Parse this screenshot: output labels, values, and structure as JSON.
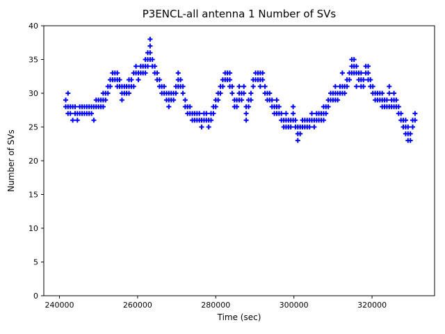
{
  "chart_data": {
    "type": "scatter",
    "title": "P3ENCL-all antenna 1 Number of SVs",
    "xlabel": "Time (sec)",
    "ylabel": "Number of SVs",
    "xlim": [
      236000,
      336000
    ],
    "ylim": [
      0,
      40
    ],
    "xticks": [
      240000,
      260000,
      280000,
      300000,
      320000
    ],
    "yticks": [
      0,
      5,
      10,
      15,
      20,
      25,
      30,
      35,
      40
    ],
    "marker": "plus",
    "marker_color": "#0000ff",
    "grid": false,
    "legend": "none",
    "columns": [
      {
        "x": 241600,
        "ys": [
          29,
          28
        ]
      },
      {
        "x": 242200,
        "ys": [
          30,
          28,
          27
        ]
      },
      {
        "x": 242800,
        "ys": [
          28,
          27
        ]
      },
      {
        "x": 243400,
        "ys": [
          28,
          26
        ]
      },
      {
        "x": 244000,
        "ys": [
          28,
          27
        ]
      },
      {
        "x": 244600,
        "ys": [
          27,
          26
        ]
      },
      {
        "x": 245200,
        "ys": [
          28,
          27
        ]
      },
      {
        "x": 245800,
        "ys": [
          28,
          27
        ]
      },
      {
        "x": 246400,
        "ys": [
          28,
          27
        ]
      },
      {
        "x": 247000,
        "ys": [
          28,
          27
        ]
      },
      {
        "x": 247600,
        "ys": [
          28,
          27
        ]
      },
      {
        "x": 248200,
        "ys": [
          28,
          27
        ]
      },
      {
        "x": 248800,
        "ys": [
          28,
          26
        ]
      },
      {
        "x": 249400,
        "ys": [
          29,
          28
        ]
      },
      {
        "x": 250000,
        "ys": [
          29,
          28
        ]
      },
      {
        "x": 250600,
        "ys": [
          29,
          28
        ]
      },
      {
        "x": 251200,
        "ys": [
          30,
          29,
          28
        ]
      },
      {
        "x": 251800,
        "ys": [
          30,
          29
        ]
      },
      {
        "x": 252400,
        "ys": [
          31,
          30
        ]
      },
      {
        "x": 253000,
        "ys": [
          32,
          31
        ]
      },
      {
        "x": 253600,
        "ys": [
          33,
          32
        ]
      },
      {
        "x": 254200,
        "ys": [
          33,
          32
        ]
      },
      {
        "x": 254800,
        "ys": [
          33,
          32,
          31
        ]
      },
      {
        "x": 255400,
        "ys": [
          32,
          31
        ]
      },
      {
        "x": 256000,
        "ys": [
          31,
          30,
          29
        ]
      },
      {
        "x": 256600,
        "ys": [
          31,
          30
        ]
      },
      {
        "x": 257200,
        "ys": [
          31,
          30
        ]
      },
      {
        "x": 257800,
        "ys": [
          32,
          31,
          30
        ]
      },
      {
        "x": 258400,
        "ys": [
          32,
          31
        ]
      },
      {
        "x": 259000,
        "ys": [
          33,
          31
        ]
      },
      {
        "x": 259600,
        "ys": [
          34,
          33
        ]
      },
      {
        "x": 260200,
        "ys": [
          33,
          32
        ]
      },
      {
        "x": 260800,
        "ys": [
          34,
          33
        ]
      },
      {
        "x": 261400,
        "ys": [
          34,
          33
        ]
      },
      {
        "x": 262000,
        "ys": [
          35,
          34,
          33
        ]
      },
      {
        "x": 262600,
        "ys": [
          36,
          35,
          34
        ]
      },
      {
        "x": 263200,
        "ys": [
          38,
          37,
          36,
          35
        ]
      },
      {
        "x": 263800,
        "ys": [
          35,
          34
        ]
      },
      {
        "x": 264400,
        "ys": [
          34,
          33
        ]
      },
      {
        "x": 265000,
        "ys": [
          33,
          32
        ]
      },
      {
        "x": 265600,
        "ys": [
          32,
          31
        ]
      },
      {
        "x": 266200,
        "ys": [
          31,
          30
        ]
      },
      {
        "x": 266800,
        "ys": [
          31,
          30
        ]
      },
      {
        "x": 267400,
        "ys": [
          30,
          29
        ]
      },
      {
        "x": 268000,
        "ys": [
          30,
          29,
          28
        ]
      },
      {
        "x": 268600,
        "ys": [
          30,
          29
        ]
      },
      {
        "x": 269200,
        "ys": [
          30,
          29
        ]
      },
      {
        "x": 269800,
        "ys": [
          31,
          30
        ]
      },
      {
        "x": 270400,
        "ys": [
          33,
          32,
          31
        ]
      },
      {
        "x": 271000,
        "ys": [
          32,
          31
        ]
      },
      {
        "x": 271600,
        "ys": [
          31,
          30
        ]
      },
      {
        "x": 272200,
        "ys": [
          29,
          28
        ]
      },
      {
        "x": 272800,
        "ys": [
          28,
          27
        ]
      },
      {
        "x": 273400,
        "ys": [
          28,
          27
        ]
      },
      {
        "x": 274000,
        "ys": [
          27,
          26
        ]
      },
      {
        "x": 274600,
        "ys": [
          27,
          26
        ]
      },
      {
        "x": 275200,
        "ys": [
          27,
          26
        ]
      },
      {
        "x": 275800,
        "ys": [
          27,
          26
        ]
      },
      {
        "x": 276400,
        "ys": [
          26,
          25
        ]
      },
      {
        "x": 277000,
        "ys": [
          27,
          26
        ]
      },
      {
        "x": 277600,
        "ys": [
          27,
          26
        ]
      },
      {
        "x": 278200,
        "ys": [
          26,
          25
        ]
      },
      {
        "x": 278800,
        "ys": [
          27,
          26
        ]
      },
      {
        "x": 279400,
        "ys": [
          28,
          27
        ]
      },
      {
        "x": 280000,
        "ys": [
          29,
          28
        ]
      },
      {
        "x": 280600,
        "ys": [
          30,
          29
        ]
      },
      {
        "x": 281200,
        "ys": [
          31,
          30
        ]
      },
      {
        "x": 281800,
        "ys": [
          32,
          31
        ]
      },
      {
        "x": 282400,
        "ys": [
          33,
          32
        ]
      },
      {
        "x": 283000,
        "ys": [
          33,
          32
        ]
      },
      {
        "x": 283600,
        "ys": [
          33,
          32,
          31
        ]
      },
      {
        "x": 284200,
        "ys": [
          31,
          30
        ]
      },
      {
        "x": 284800,
        "ys": [
          29,
          28
        ]
      },
      {
        "x": 285400,
        "ys": [
          29,
          28
        ]
      },
      {
        "x": 286000,
        "ys": [
          31,
          30,
          29
        ]
      },
      {
        "x": 286600,
        "ys": [
          30,
          29
        ]
      },
      {
        "x": 287200,
        "ys": [
          31,
          30
        ]
      },
      {
        "x": 287800,
        "ys": [
          28,
          27,
          26
        ]
      },
      {
        "x": 288400,
        "ys": [
          29,
          28
        ]
      },
      {
        "x": 289000,
        "ys": [
          30,
          29
        ]
      },
      {
        "x": 289600,
        "ys": [
          32,
          31
        ]
      },
      {
        "x": 290200,
        "ys": [
          33,
          32
        ]
      },
      {
        "x": 290800,
        "ys": [
          33,
          32
        ]
      },
      {
        "x": 291400,
        "ys": [
          33,
          32,
          31
        ]
      },
      {
        "x": 292000,
        "ys": [
          33,
          32
        ]
      },
      {
        "x": 292600,
        "ys": [
          31,
          30
        ]
      },
      {
        "x": 293200,
        "ys": [
          30,
          29
        ]
      },
      {
        "x": 293800,
        "ys": [
          30,
          29
        ]
      },
      {
        "x": 294400,
        "ys": [
          29,
          28
        ]
      },
      {
        "x": 295000,
        "ys": [
          28,
          27
        ]
      },
      {
        "x": 295600,
        "ys": [
          29,
          28,
          27
        ]
      },
      {
        "x": 296200,
        "ys": [
          28,
          27
        ]
      },
      {
        "x": 296800,
        "ys": [
          27,
          26
        ]
      },
      {
        "x": 297400,
        "ys": [
          26,
          25
        ]
      },
      {
        "x": 298000,
        "ys": [
          27,
          26,
          25
        ]
      },
      {
        "x": 298600,
        "ys": [
          26,
          25
        ]
      },
      {
        "x": 299200,
        "ys": [
          26,
          25
        ]
      },
      {
        "x": 299800,
        "ys": [
          28,
          27,
          26
        ]
      },
      {
        "x": 300400,
        "ys": [
          26,
          25
        ]
      },
      {
        "x": 301000,
        "ys": [
          25,
          24,
          23
        ]
      },
      {
        "x": 301600,
        "ys": [
          25,
          24
        ]
      },
      {
        "x": 302200,
        "ys": [
          26,
          25
        ]
      },
      {
        "x": 302800,
        "ys": [
          26,
          25
        ]
      },
      {
        "x": 303400,
        "ys": [
          26,
          25
        ]
      },
      {
        "x": 304000,
        "ys": [
          26,
          25
        ]
      },
      {
        "x": 304600,
        "ys": [
          27,
          26
        ]
      },
      {
        "x": 305200,
        "ys": [
          26,
          25
        ]
      },
      {
        "x": 305800,
        "ys": [
          27,
          26
        ]
      },
      {
        "x": 306400,
        "ys": [
          27,
          26
        ]
      },
      {
        "x": 307000,
        "ys": [
          27,
          26
        ]
      },
      {
        "x": 307600,
        "ys": [
          28,
          27,
          26
        ]
      },
      {
        "x": 308200,
        "ys": [
          28,
          27
        ]
      },
      {
        "x": 308800,
        "ys": [
          29,
          28
        ]
      },
      {
        "x": 309400,
        "ys": [
          30,
          29
        ]
      },
      {
        "x": 310000,
        "ys": [
          30,
          29
        ]
      },
      {
        "x": 310600,
        "ys": [
          31,
          30,
          29
        ]
      },
      {
        "x": 311200,
        "ys": [
          30,
          29
        ]
      },
      {
        "x": 311800,
        "ys": [
          31,
          30
        ]
      },
      {
        "x": 312400,
        "ys": [
          33,
          31,
          30
        ]
      },
      {
        "x": 313000,
        "ys": [
          31,
          30
        ]
      },
      {
        "x": 313600,
        "ys": [
          32,
          31
        ]
      },
      {
        "x": 314200,
        "ys": [
          33,
          32
        ]
      },
      {
        "x": 314800,
        "ys": [
          35,
          34,
          33
        ]
      },
      {
        "x": 315400,
        "ys": [
          35,
          34,
          33
        ]
      },
      {
        "x": 316000,
        "ys": [
          34,
          33,
          31
        ]
      },
      {
        "x": 316600,
        "ys": [
          33,
          32
        ]
      },
      {
        "x": 317200,
        "ys": [
          33,
          32,
          31
        ]
      },
      {
        "x": 317800,
        "ys": [
          32,
          31
        ]
      },
      {
        "x": 318400,
        "ys": [
          34,
          33
        ]
      },
      {
        "x": 319000,
        "ys": [
          34,
          33,
          32
        ]
      },
      {
        "x": 319600,
        "ys": [
          32,
          31
        ]
      },
      {
        "x": 320200,
        "ys": [
          31,
          30
        ]
      },
      {
        "x": 320800,
        "ys": [
          30,
          29
        ]
      },
      {
        "x": 321400,
        "ys": [
          30,
          29
        ]
      },
      {
        "x": 322000,
        "ys": [
          30,
          29
        ]
      },
      {
        "x": 322600,
        "ys": [
          30,
          29,
          28
        ]
      },
      {
        "x": 323200,
        "ys": [
          29,
          28
        ]
      },
      {
        "x": 323800,
        "ys": [
          29,
          28
        ]
      },
      {
        "x": 324400,
        "ys": [
          31,
          30,
          28
        ]
      },
      {
        "x": 325000,
        "ys": [
          29,
          28
        ]
      },
      {
        "x": 325600,
        "ys": [
          30,
          29,
          28
        ]
      },
      {
        "x": 326200,
        "ys": [
          29,
          28
        ]
      },
      {
        "x": 326800,
        "ys": [
          28,
          27
        ]
      },
      {
        "x": 327400,
        "ys": [
          27,
          26
        ]
      },
      {
        "x": 328000,
        "ys": [
          26,
          25
        ]
      },
      {
        "x": 328600,
        "ys": [
          26,
          25,
          24
        ]
      },
      {
        "x": 329200,
        "ys": [
          25,
          24,
          23
        ]
      },
      {
        "x": 329800,
        "ys": [
          24,
          23
        ]
      },
      {
        "x": 330400,
        "ys": [
          26,
          25
        ]
      },
      {
        "x": 331000,
        "ys": [
          27,
          26
        ]
      }
    ]
  }
}
